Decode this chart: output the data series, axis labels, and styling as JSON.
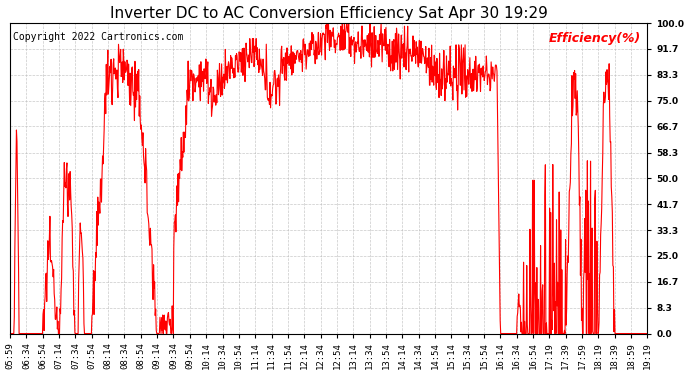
{
  "title": "Inverter DC to AC Conversion Efficiency Sat Apr 30 19:29",
  "copyright": "Copyright 2022 Cartronics.com",
  "legend_label": "Efficiency(%)",
  "line_color": "red",
  "bg_color": "white",
  "grid_color": "#bbbbbb",
  "ylabel_color": "red",
  "yticks": [
    0.0,
    8.3,
    16.7,
    25.0,
    33.3,
    41.7,
    50.0,
    58.3,
    66.7,
    75.0,
    83.3,
    91.7,
    100.0
  ],
  "xtick_labels": [
    "05:59",
    "06:34",
    "06:54",
    "07:14",
    "07:34",
    "07:54",
    "08:14",
    "08:34",
    "08:54",
    "09:14",
    "09:34",
    "09:54",
    "10:14",
    "10:34",
    "10:54",
    "11:14",
    "11:34",
    "11:54",
    "12:14",
    "12:34",
    "12:54",
    "13:14",
    "13:34",
    "13:54",
    "14:14",
    "14:34",
    "14:54",
    "15:14",
    "15:34",
    "15:54",
    "16:14",
    "16:34",
    "16:54",
    "17:19",
    "17:39",
    "17:59",
    "18:19",
    "18:39",
    "18:59",
    "19:19"
  ],
  "ylim": [
    0.0,
    100.0
  ],
  "title_fontsize": 11,
  "copyright_fontsize": 7,
  "legend_fontsize": 9,
  "tick_fontsize": 6.5,
  "line_width": 0.8,
  "figsize": [
    6.9,
    3.75
  ],
  "dpi": 100
}
